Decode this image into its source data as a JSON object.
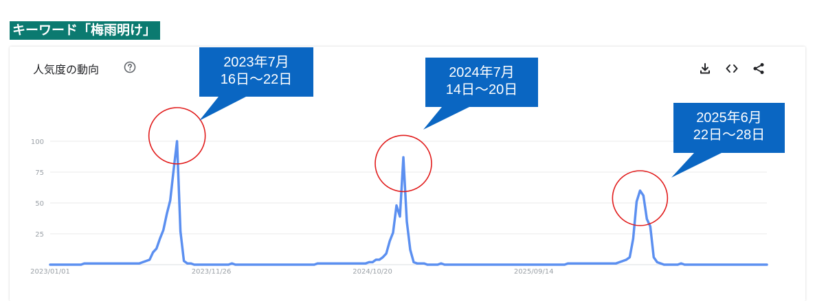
{
  "keyword_label": "キーワード「梅雨明け」",
  "card": {
    "title": "人気度の動向",
    "icons": [
      "help-icon",
      "download-icon",
      "embed-icon",
      "share-icon"
    ]
  },
  "callouts": [
    {
      "line1": "2023年7月",
      "line2": "16日～22日"
    },
    {
      "line1": "2024年7月",
      "line2": "14日～20日"
    },
    {
      "line1": "2025年6月",
      "line2": "22日～28日"
    }
  ],
  "colors": {
    "line": "#5b8ff0",
    "callout_fill": "#0a66c2",
    "circle": "#e11b1b",
    "keyword_bg": "#0b7a70"
  },
  "chart_data": {
    "type": "line",
    "x_ticks": [
      "2023/01/01",
      "2023/11/26",
      "2024/10/20",
      "2025/09/14"
    ],
    "y_ticks": [
      25,
      50,
      75,
      100
    ],
    "ylim": [
      0,
      100
    ],
    "grid": true,
    "series": [
      {
        "values": [
          0,
          0,
          0,
          0,
          0,
          0,
          0,
          0,
          0,
          0,
          1,
          1,
          1,
          1,
          1,
          1,
          1,
          1,
          1,
          1,
          1,
          1,
          1,
          1,
          1,
          1,
          1,
          2,
          3,
          4,
          10,
          13,
          21,
          28,
          41,
          52,
          77,
          100,
          27,
          3,
          1,
          1,
          0,
          0,
          0,
          0,
          0,
          0,
          0,
          0,
          0,
          0,
          0,
          1,
          0,
          0,
          0,
          0,
          0,
          0,
          0,
          0,
          0,
          0,
          0,
          0,
          0,
          0,
          0,
          0,
          0,
          0,
          0,
          0,
          0,
          0,
          0,
          0,
          1,
          1,
          1,
          1,
          1,
          1,
          1,
          1,
          1,
          1,
          1,
          1,
          1,
          1,
          1,
          2,
          2,
          4,
          4,
          6,
          9,
          19,
          26,
          48,
          39,
          87,
          35,
          12,
          2,
          1,
          1,
          1,
          0,
          0,
          0,
          0,
          1,
          0,
          0,
          0,
          0,
          0,
          0,
          0,
          0,
          0,
          0,
          0,
          0,
          0,
          0,
          0,
          0,
          0,
          0,
          0,
          0,
          0,
          0,
          0,
          0,
          0,
          0,
          0,
          0,
          0,
          0,
          0,
          0,
          0,
          0,
          0,
          0,
          1,
          1,
          1,
          1,
          1,
          1,
          1,
          1,
          1,
          1,
          1,
          1,
          1,
          1,
          1,
          2,
          3,
          4,
          6,
          21,
          51,
          60,
          56,
          37,
          31,
          6,
          2,
          1,
          0,
          0,
          0,
          0,
          0,
          1,
          0,
          0,
          0,
          0,
          0,
          0,
          0,
          0,
          0,
          0,
          0,
          0,
          0,
          0,
          0,
          0,
          0,
          0,
          0,
          0,
          0,
          0,
          0,
          0,
          0
        ]
      }
    ]
  }
}
